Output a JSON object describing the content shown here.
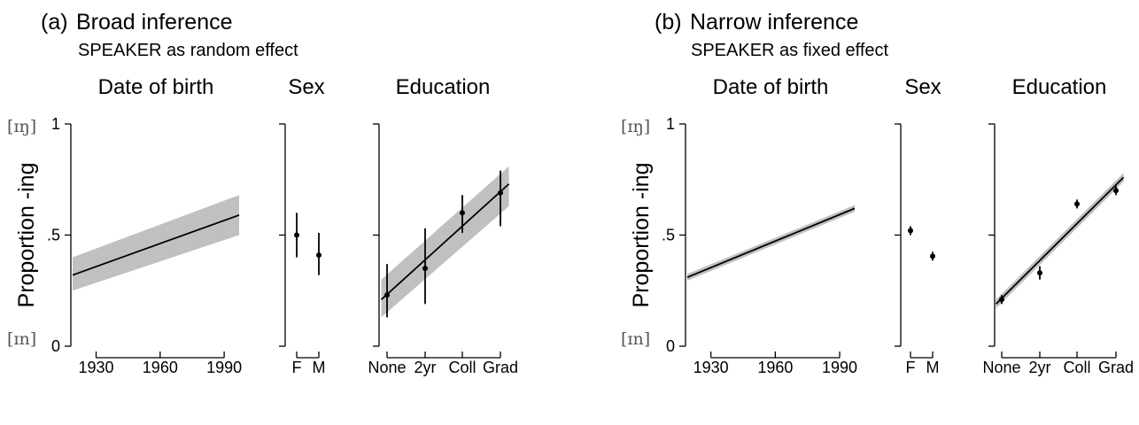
{
  "colors": {
    "band": "#c0c0c0",
    "line": "#000000",
    "axis": "#000000",
    "ipa": "#555555"
  },
  "y_axis": {
    "label": "Proportion -ing",
    "ticks": [
      "0",
      ".5",
      "1"
    ],
    "tick_values": [
      0,
      0.5,
      1
    ],
    "ipa_top": "[ɪŋ]",
    "ipa_bottom": "[ɪn]"
  },
  "chart_data": [
    {
      "panel": "a",
      "letter": "(a)",
      "title": "Broad inference",
      "subtitle": "SPEAKER as random effect",
      "facets": [
        {
          "title": "Date of birth",
          "type": "line",
          "xlim": [
            1919,
            1997
          ],
          "ylim": [
            0,
            1
          ],
          "xticks": [
            1930,
            1960,
            1990
          ],
          "x": [
            1919,
            1997
          ],
          "y": [
            0.32,
            0.59
          ],
          "lower": [
            0.25,
            0.5
          ],
          "upper": [
            0.4,
            0.68
          ]
        },
        {
          "title": "Sex",
          "type": "scatter",
          "categories": [
            "F",
            "M"
          ],
          "ylim": [
            0,
            1
          ],
          "values": [
            0.5,
            0.41
          ],
          "lower": [
            0.4,
            0.32
          ],
          "upper": [
            0.6,
            0.51
          ]
        },
        {
          "title": "Education",
          "type": "line",
          "categories": [
            "None",
            "2yr",
            "Coll",
            "Grad"
          ],
          "ylim": [
            0,
            1
          ],
          "line_x": [
            -0.15,
            3.2
          ],
          "line_y": [
            0.21,
            0.73
          ],
          "band_lower": [
            0.13,
            0.63
          ],
          "band_upper": [
            0.3,
            0.81
          ],
          "values": [
            0.23,
            0.35,
            0.6,
            0.69
          ],
          "lower": [
            0.13,
            0.19,
            0.51,
            0.54
          ],
          "upper": [
            0.37,
            0.53,
            0.68,
            0.79
          ]
        }
      ]
    },
    {
      "panel": "b",
      "letter": "(b)",
      "title": "Narrow inference",
      "subtitle": "SPEAKER as fixed effect",
      "facets": [
        {
          "title": "Date of birth",
          "type": "line",
          "xlim": [
            1919,
            1997
          ],
          "ylim": [
            0,
            1
          ],
          "xticks": [
            1930,
            1960,
            1990
          ],
          "x": [
            1919,
            1997
          ],
          "y": [
            0.31,
            0.62
          ],
          "lower": [
            0.295,
            0.605
          ],
          "upper": [
            0.325,
            0.635
          ]
        },
        {
          "title": "Sex",
          "type": "scatter",
          "categories": [
            "F",
            "M"
          ],
          "ylim": [
            0,
            1
          ],
          "values": [
            0.52,
            0.405
          ],
          "lower": [
            0.5,
            0.385
          ],
          "upper": [
            0.54,
            0.425
          ]
        },
        {
          "title": "Education",
          "type": "line",
          "categories": [
            "None",
            "2yr",
            "Coll",
            "Grad"
          ],
          "ylim": [
            0,
            1
          ],
          "line_x": [
            -0.15,
            3.2
          ],
          "line_y": [
            0.19,
            0.76
          ],
          "band_lower": [
            0.17,
            0.74
          ],
          "band_upper": [
            0.21,
            0.78
          ],
          "values": [
            0.21,
            0.33,
            0.64,
            0.7
          ],
          "lower": [
            0.19,
            0.3,
            0.62,
            0.68
          ],
          "upper": [
            0.23,
            0.36,
            0.66,
            0.72
          ]
        }
      ]
    }
  ]
}
